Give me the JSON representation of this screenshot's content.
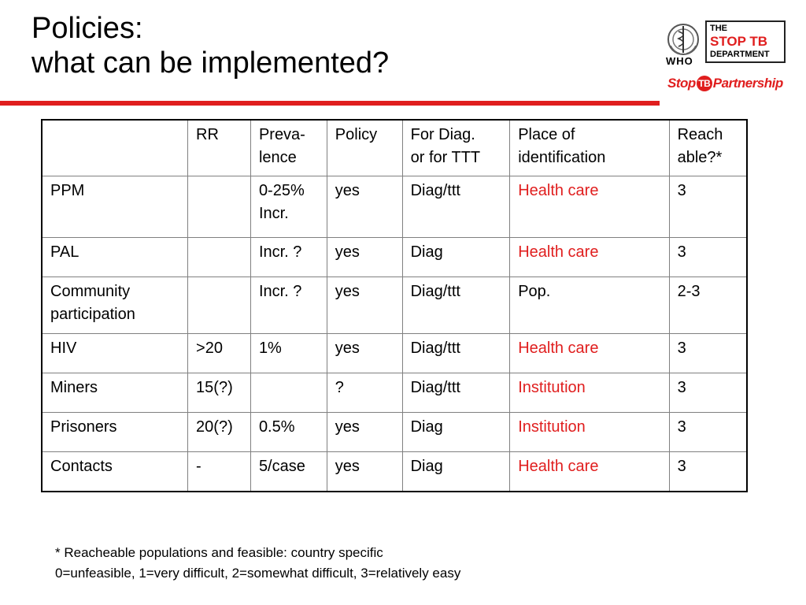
{
  "title": {
    "line1": "Policies:",
    "line2": "what can be implemented?"
  },
  "logos": {
    "who": "WHO",
    "stop_tb_department": {
      "line1": "THE",
      "line2": "STOP TB",
      "line3": "DEPARTMENT"
    },
    "partnership": {
      "stop": "Stop",
      "tb": "TB",
      "rest": "Partnership"
    }
  },
  "colors": {
    "accent_red": "#e01e1e"
  },
  "table": {
    "header": [
      "",
      "RR",
      "Preva-\nlence",
      "Policy",
      "For Diag.\nor for TTT",
      "Place of\nidentification",
      "Reach\nable?*"
    ],
    "rows": [
      [
        "PPM",
        "",
        "0-25%\nIncr.",
        "yes",
        "Diag/ttt",
        "Health care",
        "3"
      ],
      [
        "PAL",
        "",
        "Incr. ?",
        "yes",
        "Diag",
        "Health care",
        "3"
      ],
      [
        "Community\nparticipation",
        "",
        "Incr. ?",
        "yes",
        "Diag/ttt",
        "Pop.",
        "2-3"
      ],
      [
        "HIV",
        ">20",
        "1%",
        "yes",
        "Diag/ttt",
        "Health care",
        "3"
      ],
      [
        "Miners",
        "15(?)",
        "",
        "?",
        "Diag/ttt",
        "Institution",
        "3"
      ],
      [
        "Prisoners",
        "20(?)",
        "0.5%",
        "yes",
        "Diag",
        "Institution",
        "3"
      ],
      [
        "Contacts",
        "-",
        "5/case",
        "yes",
        "Diag",
        "Health care",
        "3"
      ]
    ]
  },
  "footnote": {
    "line1": "* Reacheable populations and feasible: country specific",
    "line2": "0=unfeasible, 1=very difficult, 2=somewhat difficult, 3=relatively easy"
  }
}
